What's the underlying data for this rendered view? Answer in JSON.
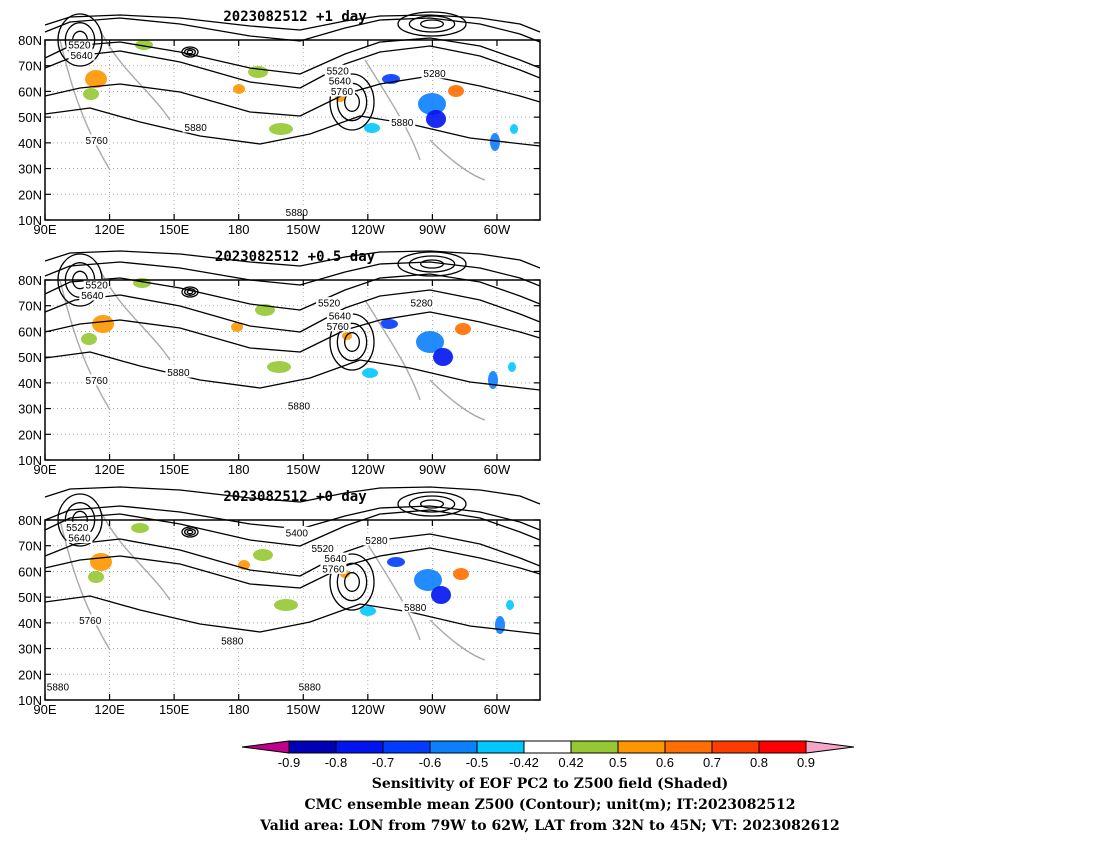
{
  "panels": [
    {
      "title": "2023082512 +1 day",
      "contour_labels": [
        {
          "text": "5520",
          "lon": 106,
          "lat": 78
        },
        {
          "text": "5640",
          "lon": 107,
          "lat": 74
        },
        {
          "text": "5520",
          "lon": 226,
          "lat": 68
        },
        {
          "text": "5640",
          "lon": 227,
          "lat": 64
        },
        {
          "text": "5760",
          "lon": 228,
          "lat": 60
        },
        {
          "text": "5280",
          "lon": 271,
          "lat": 67
        },
        {
          "text": "5880",
          "lon": 160,
          "lat": 46
        },
        {
          "text": "5880",
          "lon": 256,
          "lat": 48
        },
        {
          "text": "5760",
          "lon": 114,
          "lat": 41
        },
        {
          "text": "5880",
          "lon": 207,
          "lat": 13
        }
      ]
    },
    {
      "title": "2023082512 +0.5 day",
      "contour_labels": [
        {
          "text": "5520",
          "lon": 114,
          "lat": 78
        },
        {
          "text": "5640",
          "lon": 112,
          "lat": 74
        },
        {
          "text": "5520",
          "lon": 222,
          "lat": 71
        },
        {
          "text": "5280",
          "lon": 265,
          "lat": 71
        },
        {
          "text": "5640",
          "lon": 227,
          "lat": 66
        },
        {
          "text": "5760",
          "lon": 226,
          "lat": 62
        },
        {
          "text": "5880",
          "lon": 152,
          "lat": 44
        },
        {
          "text": "5760",
          "lon": 114,
          "lat": 41
        },
        {
          "text": "5880",
          "lon": 208,
          "lat": 31
        }
      ]
    },
    {
      "title": "2023082512 +0 day",
      "contour_labels": [
        {
          "text": "5520",
          "lon": 105,
          "lat": 77
        },
        {
          "text": "5640",
          "lon": 106,
          "lat": 73
        },
        {
          "text": "5400",
          "lon": 207,
          "lat": 75
        },
        {
          "text": "5280",
          "lon": 244,
          "lat": 72
        },
        {
          "text": "5520",
          "lon": 219,
          "lat": 69
        },
        {
          "text": "5640",
          "lon": 225,
          "lat": 65
        },
        {
          "text": "5760",
          "lon": 224,
          "lat": 61
        },
        {
          "text": "5880",
          "lon": 262,
          "lat": 46
        },
        {
          "text": "5760",
          "lon": 111,
          "lat": 41
        },
        {
          "text": "5880",
          "lon": 177,
          "lat": 33
        },
        {
          "text": "5880",
          "lon": 96,
          "lat": 15
        },
        {
          "text": "5880",
          "lon": 213,
          "lat": 15
        }
      ]
    }
  ],
  "axes": {
    "lon_range": [
      90,
      320
    ],
    "lat_range": [
      10,
      80
    ],
    "lat_ticks": [
      {
        "value": 80,
        "label": "80N"
      },
      {
        "value": 70,
        "label": "70N"
      },
      {
        "value": 60,
        "label": "60N"
      },
      {
        "value": 50,
        "label": "50N"
      },
      {
        "value": 40,
        "label": "40N"
      },
      {
        "value": 30,
        "label": "30N"
      },
      {
        "value": 20,
        "label": "20N"
      },
      {
        "value": 10,
        "label": "10N"
      }
    ],
    "lon_ticks": [
      {
        "value": 90,
        "label": "90E"
      },
      {
        "value": 120,
        "label": "120E"
      },
      {
        "value": 150,
        "label": "150E"
      },
      {
        "value": 180,
        "label": "180"
      },
      {
        "value": 210,
        "label": "150W"
      },
      {
        "value": 240,
        "label": "120W"
      },
      {
        "value": 270,
        "label": "90W"
      },
      {
        "value": 300,
        "label": "60W"
      }
    ]
  },
  "colorbar": {
    "labels": [
      "-0.9",
      "-0.8",
      "-0.7",
      "-0.6",
      "-0.5",
      "-0.42",
      "0.42",
      "0.5",
      "0.6",
      "0.7",
      "0.8",
      "0.9"
    ],
    "left_extend_color": "#c0008c",
    "right_extend_color": "#f5a6c8",
    "colors": [
      "#0000b4",
      "#0014f0",
      "#003cff",
      "#0a80ff",
      "#00c8ff",
      "#ffffff",
      "#96c832",
      "#ff9600",
      "#ff6e00",
      "#ff3c00",
      "#ff0000"
    ]
  },
  "caption": [
    "Sensitivity of EOF PC2 to Z500 field (Shaded)",
    "CMC ensemble mean Z500 (Contour); unit(m); IT:2023082512",
    "Valid area: LON from 79W to 62W, LAT from 32N to 45N; VT: 2023082612"
  ]
}
